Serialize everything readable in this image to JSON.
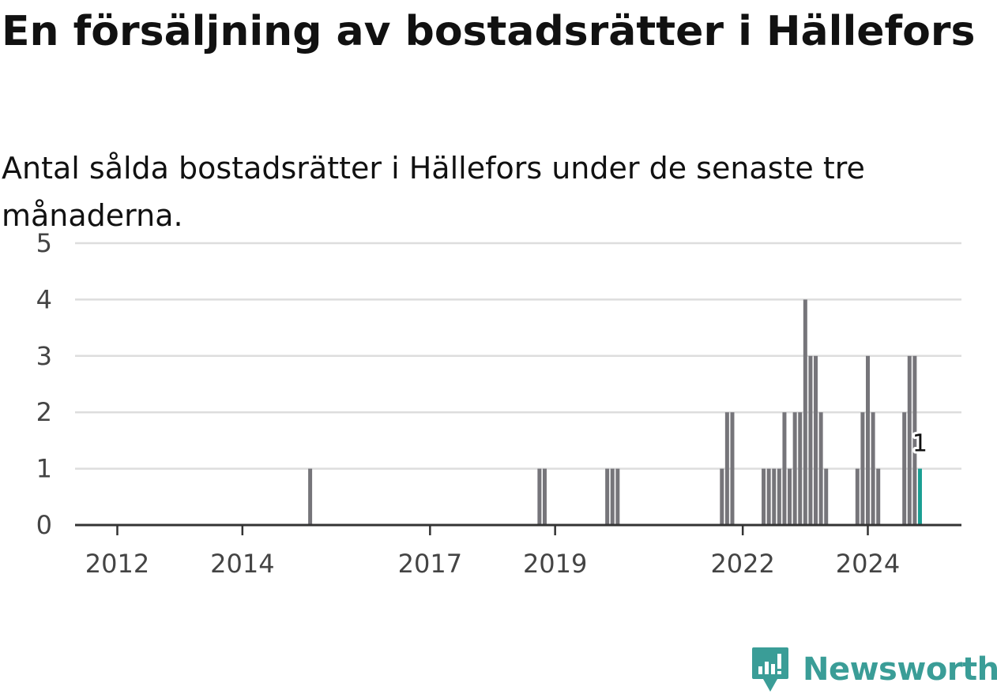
{
  "title": "En försäljning av bostadsrätter i Hällefors",
  "subtitle": "Antal sålda bostadsrätter i Hällefors under de senaste tre månaderna.",
  "brand": {
    "name": "Newsworthy",
    "icon": "newsworthy-bar-chart-icon",
    "color": "#3a9d97"
  },
  "colors": {
    "bar": "#76757a",
    "highlight": "#1a9f93",
    "grid": "#dddddd",
    "axis": "#333333"
  },
  "chart_data": {
    "type": "bar",
    "ylim": [
      0,
      5
    ],
    "yticks": [
      0,
      1,
      2,
      3,
      4,
      5
    ],
    "grid": true,
    "xticks": [
      {
        "label": "2012",
        "date": "2012-01"
      },
      {
        "label": "2014",
        "date": "2014-01"
      },
      {
        "label": "2017",
        "date": "2017-01"
      },
      {
        "label": "2019",
        "date": "2019-01"
      },
      {
        "label": "2022",
        "date": "2022-01"
      },
      {
        "label": "2024",
        "date": "2024-01"
      }
    ],
    "bars": [
      {
        "date": "2015-02",
        "value": 1
      },
      {
        "date": "2018-10",
        "value": 1
      },
      {
        "date": "2018-11",
        "value": 1
      },
      {
        "date": "2019-11",
        "value": 1
      },
      {
        "date": "2019-12",
        "value": 1
      },
      {
        "date": "2020-01",
        "value": 1
      },
      {
        "date": "2021-09",
        "value": 1
      },
      {
        "date": "2021-10",
        "value": 2
      },
      {
        "date": "2021-11",
        "value": 2
      },
      {
        "date": "2022-05",
        "value": 1
      },
      {
        "date": "2022-06",
        "value": 1
      },
      {
        "date": "2022-07",
        "value": 1
      },
      {
        "date": "2022-08",
        "value": 1
      },
      {
        "date": "2022-09",
        "value": 2
      },
      {
        "date": "2022-10",
        "value": 1
      },
      {
        "date": "2022-11",
        "value": 2
      },
      {
        "date": "2022-12",
        "value": 2
      },
      {
        "date": "2023-01",
        "value": 4
      },
      {
        "date": "2023-02",
        "value": 3
      },
      {
        "date": "2023-03",
        "value": 3
      },
      {
        "date": "2023-04",
        "value": 2
      },
      {
        "date": "2023-05",
        "value": 1
      },
      {
        "date": "2023-11",
        "value": 1
      },
      {
        "date": "2023-12",
        "value": 2
      },
      {
        "date": "2024-01",
        "value": 3
      },
      {
        "date": "2024-02",
        "value": 2
      },
      {
        "date": "2024-03",
        "value": 1
      },
      {
        "date": "2024-08",
        "value": 2
      },
      {
        "date": "2024-09",
        "value": 3
      },
      {
        "date": "2024-10",
        "value": 3
      },
      {
        "date": "2024-11",
        "value": 1,
        "highlight": true,
        "label": "1"
      }
    ]
  }
}
